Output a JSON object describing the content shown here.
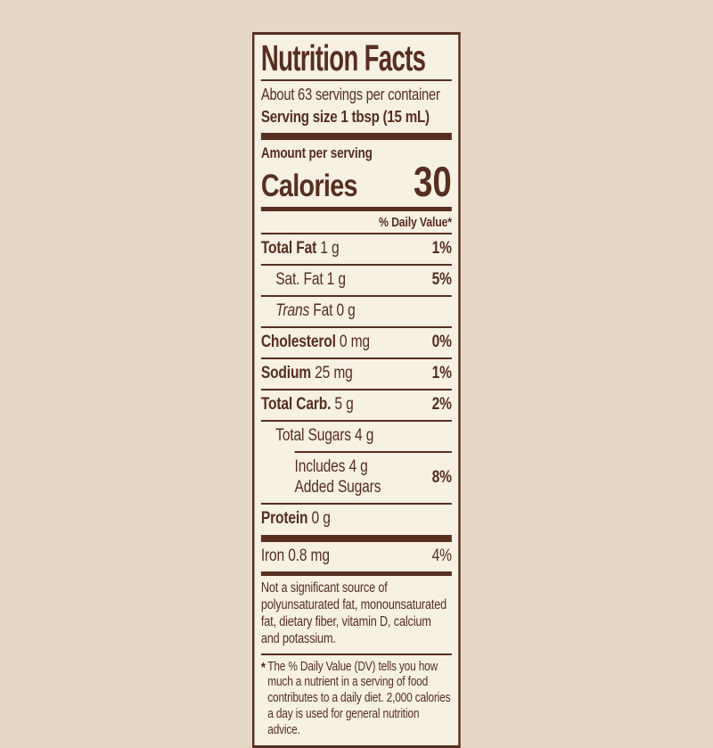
{
  "colors": {
    "page_bg": "#e5d8c4",
    "label_bg": "#f7f1e4",
    "ink": "#572e20"
  },
  "label": {
    "title": "Nutrition Facts",
    "servings_per_container": "About 63 servings per container",
    "serving_size": "Serving size 1 tbsp (15 mL)",
    "amount_per_serving": "Amount per serving",
    "calories_label": "Calories",
    "calories_value": "30",
    "daily_value_header": "% Daily Value*"
  },
  "rows": {
    "total_fat": {
      "name": "Total Fat",
      "amount": "1 g",
      "dv": "1%"
    },
    "sat_fat": {
      "name": "Sat. Fat",
      "amount": "1 g",
      "dv": "5%"
    },
    "trans_fat": {
      "name_italic": "Trans",
      "rest": "Fat 0 g"
    },
    "cholesterol": {
      "name": "Cholesterol",
      "amount": "0 mg",
      "dv": "0%"
    },
    "sodium": {
      "name": "Sodium",
      "amount": "25 mg",
      "dv": "1%"
    },
    "total_carb": {
      "name": "Total Carb.",
      "amount": "5 g",
      "dv": "2%"
    },
    "total_sugars": {
      "name": "Total Sugars",
      "amount": "4 g"
    },
    "added_sugars": {
      "line1": "Includes 4 g",
      "line2": "Added Sugars",
      "dv": "8%"
    },
    "protein": {
      "name": "Protein",
      "amount": "0 g"
    },
    "iron": {
      "name": "Iron",
      "amount": "0.8 mg",
      "dv": "4%"
    }
  },
  "not_significant": "Not a significant source of polyunsaturated fat, monounsaturated fat, dietary fiber, vitamin D, calcium and potassium.",
  "footnote_marker": "*",
  "footnote": "The % Daily Value (DV) tells you how much a nutrient in a serving of food contributes to a daily diet. 2,000 calories a day is used for general nutrition advice."
}
